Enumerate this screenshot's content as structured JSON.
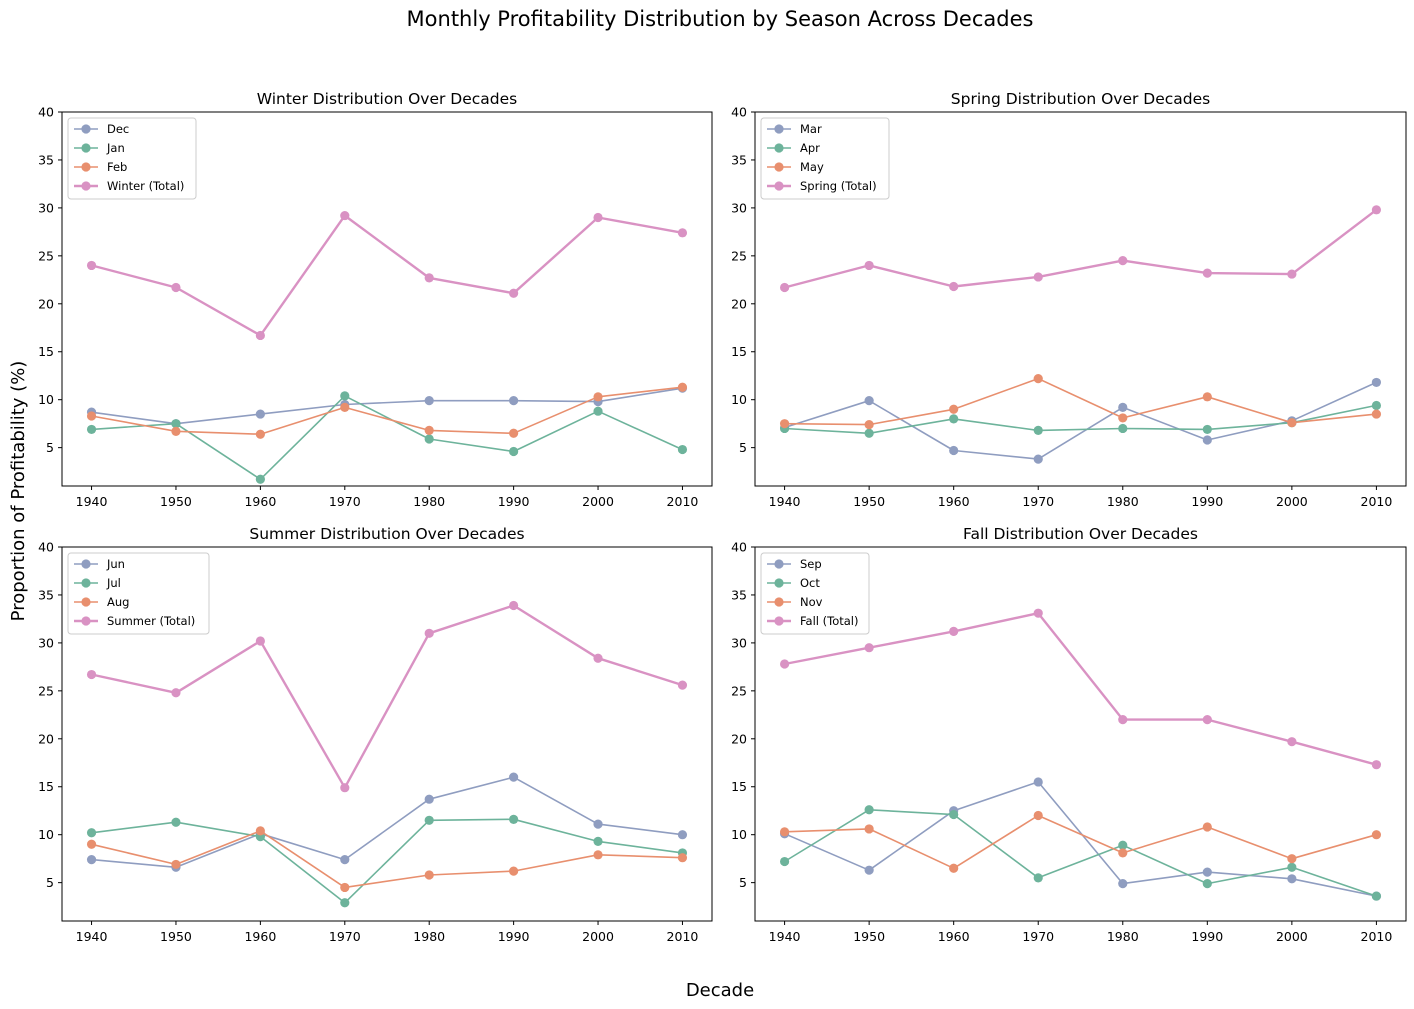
{
  "figure": {
    "title": "Monthly Profitability Distribution by Season Across Decades",
    "ylabel": "Proportion of Profitability (%)",
    "xlabel": "Decade"
  },
  "colors": {
    "series1": "#8f9dc0",
    "series2": "#6db39b",
    "series3": "#e88f6e",
    "total": "#d992c3"
  },
  "chart_data": [
    {
      "type": "line",
      "title": "Winter Distribution Over Decades",
      "x": [
        1940,
        1950,
        1960,
        1970,
        1980,
        1990,
        2000,
        2010
      ],
      "ylim": [
        1,
        40
      ],
      "yticks": [
        5,
        10,
        15,
        20,
        25,
        30,
        35,
        40
      ],
      "legend_position": "upper-left",
      "series": [
        {
          "name": "Dec",
          "values": [
            8.7,
            7.5,
            8.5,
            9.5,
            9.9,
            9.9,
            9.8,
            11.2
          ]
        },
        {
          "name": "Jan",
          "values": [
            6.9,
            7.5,
            1.7,
            10.4,
            5.9,
            4.6,
            8.8,
            4.8
          ]
        },
        {
          "name": "Feb",
          "values": [
            8.3,
            6.7,
            6.4,
            9.2,
            6.8,
            6.5,
            10.3,
            11.3
          ]
        },
        {
          "name": "Winter (Total)",
          "values": [
            24.0,
            21.7,
            16.7,
            29.2,
            22.7,
            21.1,
            29.0,
            27.4
          ]
        }
      ]
    },
    {
      "type": "line",
      "title": "Spring Distribution Over Decades",
      "x": [
        1940,
        1950,
        1960,
        1970,
        1980,
        1990,
        2000,
        2010
      ],
      "ylim": [
        1,
        40
      ],
      "yticks": [
        5,
        10,
        15,
        20,
        25,
        30,
        35,
        40
      ],
      "legend_position": "upper-left",
      "series": [
        {
          "name": "Mar",
          "values": [
            7.1,
            9.9,
            4.7,
            3.8,
            9.2,
            5.8,
            7.8,
            11.8
          ]
        },
        {
          "name": "Apr",
          "values": [
            7.0,
            6.5,
            8.0,
            6.8,
            7.0,
            6.9,
            7.6,
            9.4
          ]
        },
        {
          "name": "May",
          "values": [
            7.5,
            7.4,
            9.0,
            12.2,
            8.1,
            10.3,
            7.6,
            8.5
          ]
        },
        {
          "name": "Spring (Total)",
          "values": [
            21.7,
            24.0,
            21.8,
            22.8,
            24.5,
            23.2,
            23.1,
            29.8
          ]
        }
      ]
    },
    {
      "type": "line",
      "title": "Summer Distribution Over Decades",
      "x": [
        1940,
        1950,
        1960,
        1970,
        1980,
        1990,
        2000,
        2010
      ],
      "ylim": [
        1,
        40
      ],
      "yticks": [
        5,
        10,
        15,
        20,
        25,
        30,
        35,
        40
      ],
      "legend_position": "upper-left",
      "series": [
        {
          "name": "Jun",
          "values": [
            7.4,
            6.6,
            10.1,
            7.4,
            13.7,
            16.0,
            11.1,
            10.0
          ]
        },
        {
          "name": "Jul",
          "values": [
            10.2,
            11.3,
            9.8,
            2.9,
            11.5,
            11.6,
            9.3,
            8.1
          ]
        },
        {
          "name": "Aug",
          "values": [
            9.0,
            6.9,
            10.4,
            4.5,
            5.8,
            6.2,
            7.9,
            7.6
          ]
        },
        {
          "name": "Summer (Total)",
          "values": [
            26.7,
            24.8,
            30.2,
            14.9,
            31.0,
            33.9,
            28.4,
            25.6
          ]
        }
      ]
    },
    {
      "type": "line",
      "title": "Fall Distribution Over Decades",
      "x": [
        1940,
        1950,
        1960,
        1970,
        1980,
        1990,
        2000,
        2010
      ],
      "ylim": [
        1,
        40
      ],
      "yticks": [
        5,
        10,
        15,
        20,
        25,
        30,
        35,
        40
      ],
      "legend_position": "upper-left",
      "series": [
        {
          "name": "Sep",
          "values": [
            10.1,
            6.3,
            12.5,
            15.5,
            4.9,
            6.1,
            5.4,
            3.6
          ]
        },
        {
          "name": "Oct",
          "values": [
            7.2,
            12.6,
            12.1,
            5.5,
            8.9,
            4.9,
            6.6,
            3.6
          ]
        },
        {
          "name": "Nov",
          "values": [
            10.3,
            10.6,
            6.5,
            12.0,
            8.1,
            10.8,
            7.5,
            10.0
          ]
        },
        {
          "name": "Fall (Total)",
          "values": [
            27.8,
            29.5,
            31.2,
            33.1,
            22.0,
            22.0,
            19.7,
            17.3
          ]
        }
      ]
    }
  ]
}
